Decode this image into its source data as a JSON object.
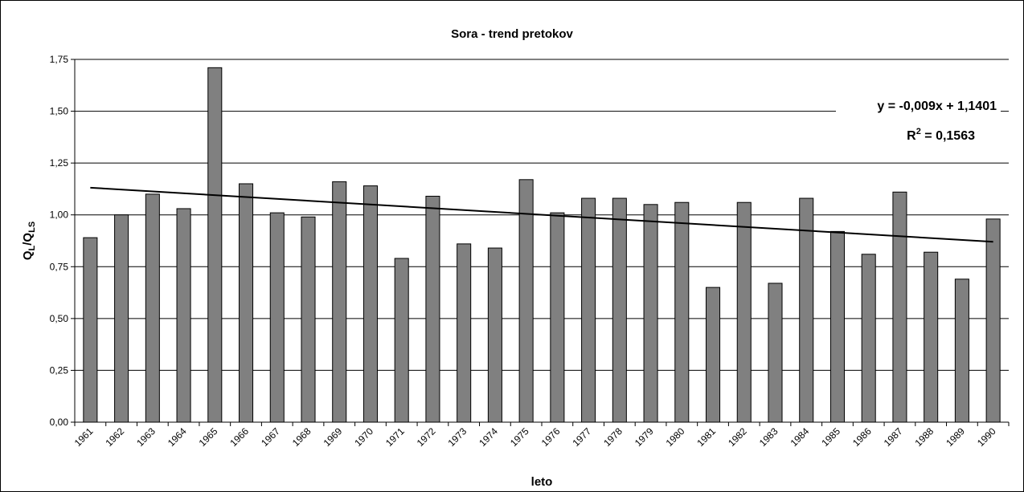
{
  "chart_data": {
    "type": "bar",
    "title": "Sora - trend pretokov",
    "x_label": "leto",
    "y_label_parts": [
      "Q",
      "L",
      "/Q",
      "LS"
    ],
    "categories": [
      "1961",
      "1962",
      "1963",
      "1964",
      "1965",
      "1966",
      "1967",
      "1968",
      "1969",
      "1970",
      "1971",
      "1972",
      "1973",
      "1974",
      "1975",
      "1976",
      "1977",
      "1978",
      "1979",
      "1980",
      "1981",
      "1982",
      "1983",
      "1984",
      "1985",
      "1986",
      "1987",
      "1988",
      "1989",
      "1990"
    ],
    "values": [
      0.89,
      1.0,
      1.1,
      1.03,
      1.71,
      1.15,
      1.01,
      0.99,
      1.16,
      1.14,
      0.79,
      1.09,
      0.86,
      0.84,
      1.17,
      1.01,
      1.08,
      1.08,
      1.05,
      1.06,
      0.65,
      1.06,
      0.67,
      1.08,
      0.92,
      0.81,
      1.11,
      0.82,
      0.69,
      0.98
    ],
    "color": "#808080",
    "ylim": [
      0,
      1.75
    ],
    "yticks": [
      {
        "value": 0,
        "label": "0,00"
      },
      {
        "value": 0.25,
        "label": "0,25"
      },
      {
        "value": 0.5,
        "label": "0,50"
      },
      {
        "value": 0.75,
        "label": "0,75"
      },
      {
        "value": 1,
        "label": "1,00"
      },
      {
        "value": 1.25,
        "label": "1,25"
      },
      {
        "value": 1.5,
        "label": "1,50"
      },
      {
        "value": 1.75,
        "label": "1,75"
      }
    ],
    "grid": true,
    "trendline": {
      "slope": -0.009,
      "intercept": 1.1401,
      "color": "#000000",
      "label": "y = -0,009x + 1,1401",
      "r2_label_parts": [
        "R",
        "2",
        " = 0,1563"
      ]
    }
  }
}
